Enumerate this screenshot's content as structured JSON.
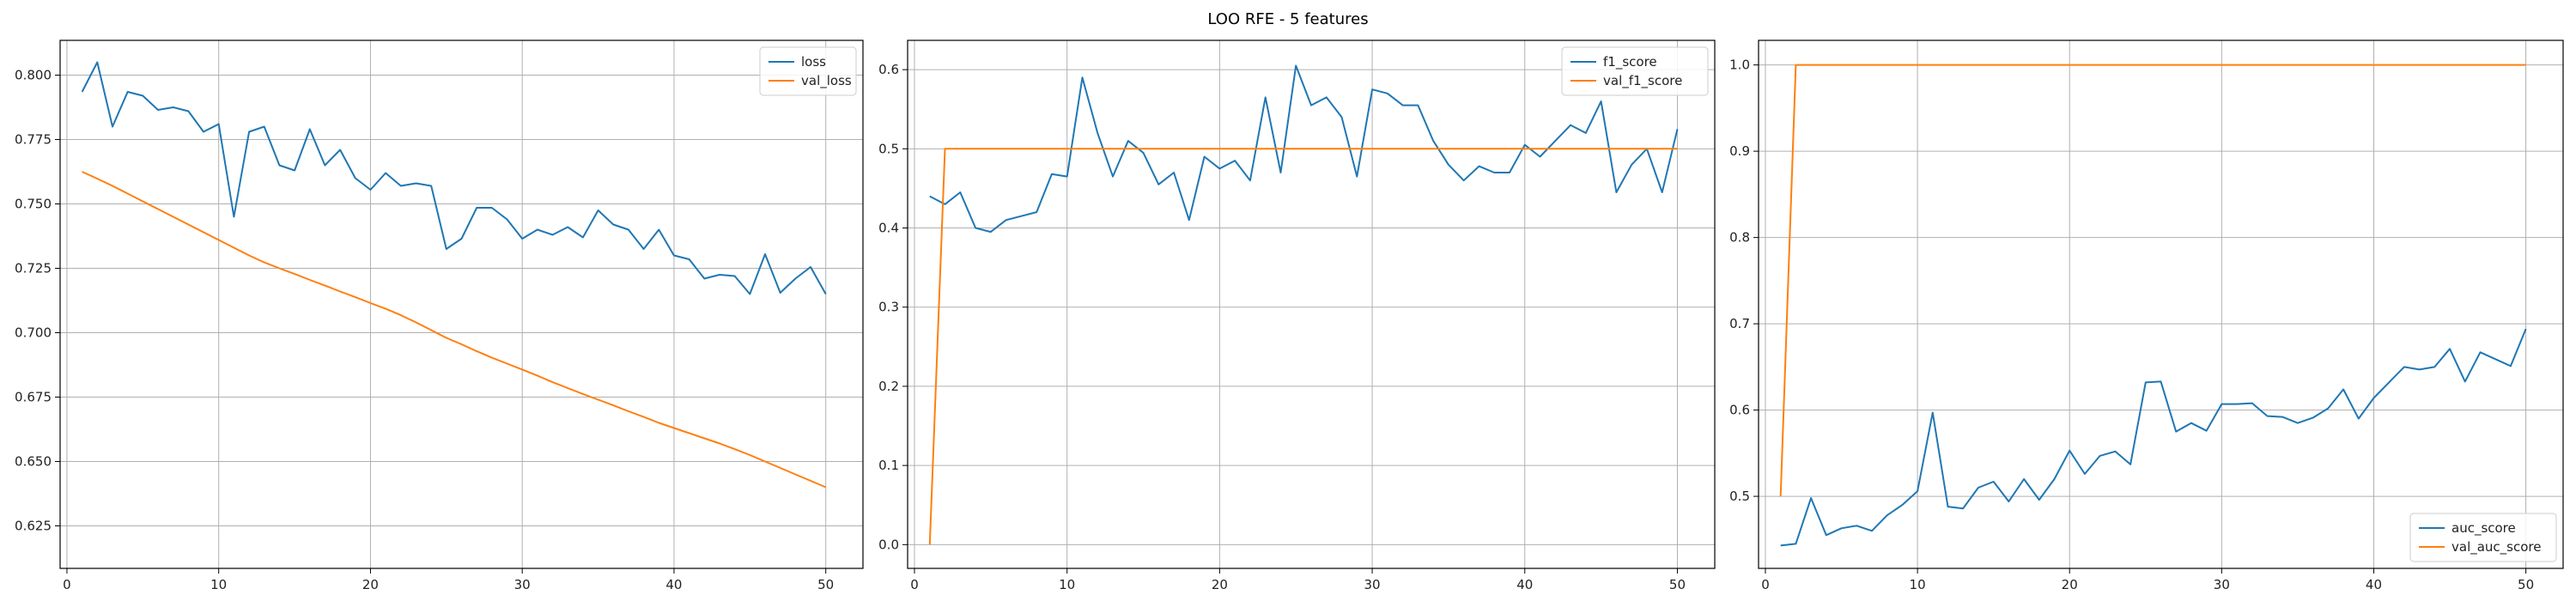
{
  "title": "LOO RFE - 5 features",
  "colors": {
    "train": "#1f77b4",
    "val": "#ff7f0e",
    "grid": "#b0b0b0",
    "axis": "#000000"
  },
  "chart_data": [
    {
      "type": "line",
      "xlabel": "",
      "ylabel": "",
      "xlim": [
        -0.45,
        52.45
      ],
      "ylim": [
        0.6085,
        0.8135
      ],
      "xticks": [
        0,
        10,
        20,
        30,
        40,
        50
      ],
      "yticks": [
        0.625,
        0.65,
        0.675,
        0.7,
        0.725,
        0.75,
        0.775,
        0.8
      ],
      "ytick_labels": [
        "0.625",
        "0.650",
        "0.675",
        "0.700",
        "0.725",
        "0.750",
        "0.775",
        "0.800"
      ],
      "grid": true,
      "legend": "upper right",
      "series": [
        {
          "name": "loss",
          "color": "#1f77b4",
          "x": [
            1,
            2,
            3,
            4,
            5,
            6,
            7,
            8,
            9,
            10,
            11,
            12,
            13,
            14,
            15,
            16,
            17,
            18,
            19,
            20,
            21,
            22,
            23,
            24,
            25,
            26,
            27,
            28,
            29,
            30,
            31,
            32,
            33,
            34,
            35,
            36,
            37,
            38,
            39,
            40,
            41,
            42,
            43,
            44,
            45,
            46,
            47,
            48,
            49,
            50
          ],
          "y": [
            0.7935,
            0.805,
            0.78,
            0.7935,
            0.792,
            0.7865,
            0.7875,
            0.786,
            0.778,
            0.781,
            0.745,
            0.778,
            0.78,
            0.765,
            0.763,
            0.779,
            0.765,
            0.771,
            0.76,
            0.7555,
            0.762,
            0.757,
            0.758,
            0.757,
            0.7325,
            0.7365,
            0.7485,
            0.7485,
            0.744,
            0.7365,
            0.74,
            0.738,
            0.741,
            0.737,
            0.7475,
            0.742,
            0.74,
            0.7325,
            0.74,
            0.73,
            0.7285,
            0.721,
            0.7225,
            0.722,
            0.715,
            0.7305,
            0.7155,
            0.721,
            0.7255,
            0.715
          ]
        },
        {
          "name": "val_loss",
          "color": "#ff7f0e",
          "x": [
            1,
            2,
            3,
            4,
            5,
            6,
            7,
            8,
            9,
            10,
            11,
            12,
            13,
            14,
            15,
            16,
            17,
            18,
            19,
            20,
            21,
            22,
            23,
            24,
            25,
            26,
            27,
            28,
            29,
            30,
            31,
            32,
            33,
            34,
            35,
            36,
            37,
            38,
            39,
            40,
            41,
            42,
            43,
            44,
            45,
            46,
            47,
            48,
            49,
            50
          ],
          "y": [
            0.7625,
            0.7598,
            0.757,
            0.754,
            0.751,
            0.748,
            0.745,
            0.742,
            0.739,
            0.736,
            0.733,
            0.73,
            0.7273,
            0.725,
            0.7228,
            0.7205,
            0.7183,
            0.716,
            0.7138,
            0.7115,
            0.7093,
            0.7068,
            0.704,
            0.701,
            0.698,
            0.6955,
            0.6928,
            0.6903,
            0.688,
            0.6857,
            0.6833,
            0.6808,
            0.6785,
            0.6762,
            0.674,
            0.6718,
            0.6695,
            0.6673,
            0.665,
            0.663,
            0.661,
            0.659,
            0.657,
            0.6548,
            0.6525,
            0.65,
            0.6475,
            0.645,
            0.6425,
            0.64
          ]
        }
      ]
    },
    {
      "type": "line",
      "xlabel": "",
      "ylabel": "",
      "xlim": [
        -0.45,
        52.45
      ],
      "ylim": [
        -0.03,
        0.637
      ],
      "xticks": [
        0,
        10,
        20,
        30,
        40,
        50
      ],
      "yticks": [
        0.0,
        0.1,
        0.2,
        0.3,
        0.4,
        0.5,
        0.6
      ],
      "ytick_labels": [
        "0.0",
        "0.1",
        "0.2",
        "0.3",
        "0.4",
        "0.5",
        "0.6"
      ],
      "grid": true,
      "legend": "upper right",
      "series": [
        {
          "name": "f1_score",
          "color": "#1f77b4",
          "x": [
            1,
            2,
            3,
            4,
            5,
            6,
            7,
            8,
            9,
            10,
            11,
            12,
            13,
            14,
            15,
            16,
            17,
            18,
            19,
            20,
            21,
            22,
            23,
            24,
            25,
            26,
            27,
            28,
            29,
            30,
            31,
            32,
            33,
            34,
            35,
            36,
            37,
            38,
            39,
            40,
            41,
            42,
            43,
            44,
            45,
            46,
            47,
            48,
            49,
            50
          ],
          "y": [
            0.44,
            0.43,
            0.445,
            0.4,
            0.395,
            0.41,
            0.415,
            0.42,
            0.468,
            0.465,
            0.59,
            0.52,
            0.465,
            0.51,
            0.495,
            0.455,
            0.47,
            0.41,
            0.49,
            0.475,
            0.485,
            0.46,
            0.565,
            0.47,
            0.605,
            0.555,
            0.565,
            0.54,
            0.465,
            0.575,
            0.57,
            0.555,
            0.555,
            0.51,
            0.48,
            0.46,
            0.478,
            0.47,
            0.47,
            0.505,
            0.49,
            0.51,
            0.53,
            0.52,
            0.56,
            0.445,
            0.48,
            0.5,
            0.445,
            0.525
          ]
        },
        {
          "name": "val_f1_score",
          "color": "#ff7f0e",
          "x": [
            1,
            2,
            3,
            4,
            5,
            6,
            7,
            8,
            9,
            10,
            11,
            12,
            13,
            14,
            15,
            16,
            17,
            18,
            19,
            20,
            21,
            22,
            23,
            24,
            25,
            26,
            27,
            28,
            29,
            30,
            31,
            32,
            33,
            34,
            35,
            36,
            37,
            38,
            39,
            40,
            41,
            42,
            43,
            44,
            45,
            46,
            47,
            48,
            49,
            50
          ],
          "y": [
            0.0,
            0.5,
            0.5,
            0.5,
            0.5,
            0.5,
            0.5,
            0.5,
            0.5,
            0.5,
            0.5,
            0.5,
            0.5,
            0.5,
            0.5,
            0.5,
            0.5,
            0.5,
            0.5,
            0.5,
            0.5,
            0.5,
            0.5,
            0.5,
            0.5,
            0.5,
            0.5,
            0.5,
            0.5,
            0.5,
            0.5,
            0.5,
            0.5,
            0.5,
            0.5,
            0.5,
            0.5,
            0.5,
            0.5,
            0.5,
            0.5,
            0.5,
            0.5,
            0.5,
            0.5,
            0.5,
            0.5,
            0.5,
            0.5,
            0.5
          ]
        }
      ]
    },
    {
      "type": "line",
      "xlabel": "",
      "ylabel": "",
      "xlim": [
        -0.45,
        52.45
      ],
      "ylim": [
        0.4165,
        1.0285
      ],
      "xticks": [
        0,
        10,
        20,
        30,
        40,
        50
      ],
      "yticks": [
        0.5,
        0.6,
        0.7,
        0.8,
        0.9,
        1.0
      ],
      "ytick_labels": [
        "0.5",
        "0.6",
        "0.7",
        "0.8",
        "0.9",
        "1.0"
      ],
      "grid": true,
      "legend": "lower right",
      "series": [
        {
          "name": "auc_score",
          "color": "#1f77b4",
          "x": [
            1,
            2,
            3,
            4,
            5,
            6,
            7,
            8,
            9,
            10,
            11,
            12,
            13,
            14,
            15,
            16,
            17,
            18,
            19,
            20,
            21,
            22,
            23,
            24,
            25,
            26,
            27,
            28,
            29,
            30,
            31,
            32,
            33,
            34,
            35,
            36,
            37,
            38,
            39,
            40,
            41,
            42,
            43,
            44,
            45,
            46,
            47,
            48,
            49,
            50
          ],
          "y": [
            0.443,
            0.445,
            0.498,
            0.455,
            0.463,
            0.466,
            0.46,
            0.478,
            0.49,
            0.506,
            0.597,
            0.488,
            0.486,
            0.51,
            0.517,
            0.494,
            0.52,
            0.496,
            0.52,
            0.553,
            0.526,
            0.547,
            0.552,
            0.537,
            0.632,
            0.633,
            0.575,
            0.585,
            0.576,
            0.607,
            0.607,
            0.608,
            0.593,
            0.592,
            0.585,
            0.591,
            0.602,
            0.624,
            0.59,
            0.614,
            0.632,
            0.65,
            0.647,
            0.65,
            0.671,
            0.633,
            0.667,
            0.659,
            0.651,
            0.694
          ]
        },
        {
          "name": "val_auc_score",
          "color": "#ff7f0e",
          "x": [
            1,
            2,
            3,
            4,
            5,
            6,
            7,
            8,
            9,
            10,
            11,
            12,
            13,
            14,
            15,
            16,
            17,
            18,
            19,
            20,
            21,
            22,
            23,
            24,
            25,
            26,
            27,
            28,
            29,
            30,
            31,
            32,
            33,
            34,
            35,
            36,
            37,
            38,
            39,
            40,
            41,
            42,
            43,
            44,
            45,
            46,
            47,
            48,
            49,
            50
          ],
          "y": [
            0.5,
            1.0,
            1.0,
            1.0,
            1.0,
            1.0,
            1.0,
            1.0,
            1.0,
            1.0,
            1.0,
            1.0,
            1.0,
            1.0,
            1.0,
            1.0,
            1.0,
            1.0,
            1.0,
            1.0,
            1.0,
            1.0,
            1.0,
            1.0,
            1.0,
            1.0,
            1.0,
            1.0,
            1.0,
            1.0,
            1.0,
            1.0,
            1.0,
            1.0,
            1.0,
            1.0,
            1.0,
            1.0,
            1.0,
            1.0,
            1.0,
            1.0,
            1.0,
            1.0,
            1.0,
            1.0,
            1.0,
            1.0,
            1.0,
            1.0
          ]
        }
      ]
    }
  ]
}
